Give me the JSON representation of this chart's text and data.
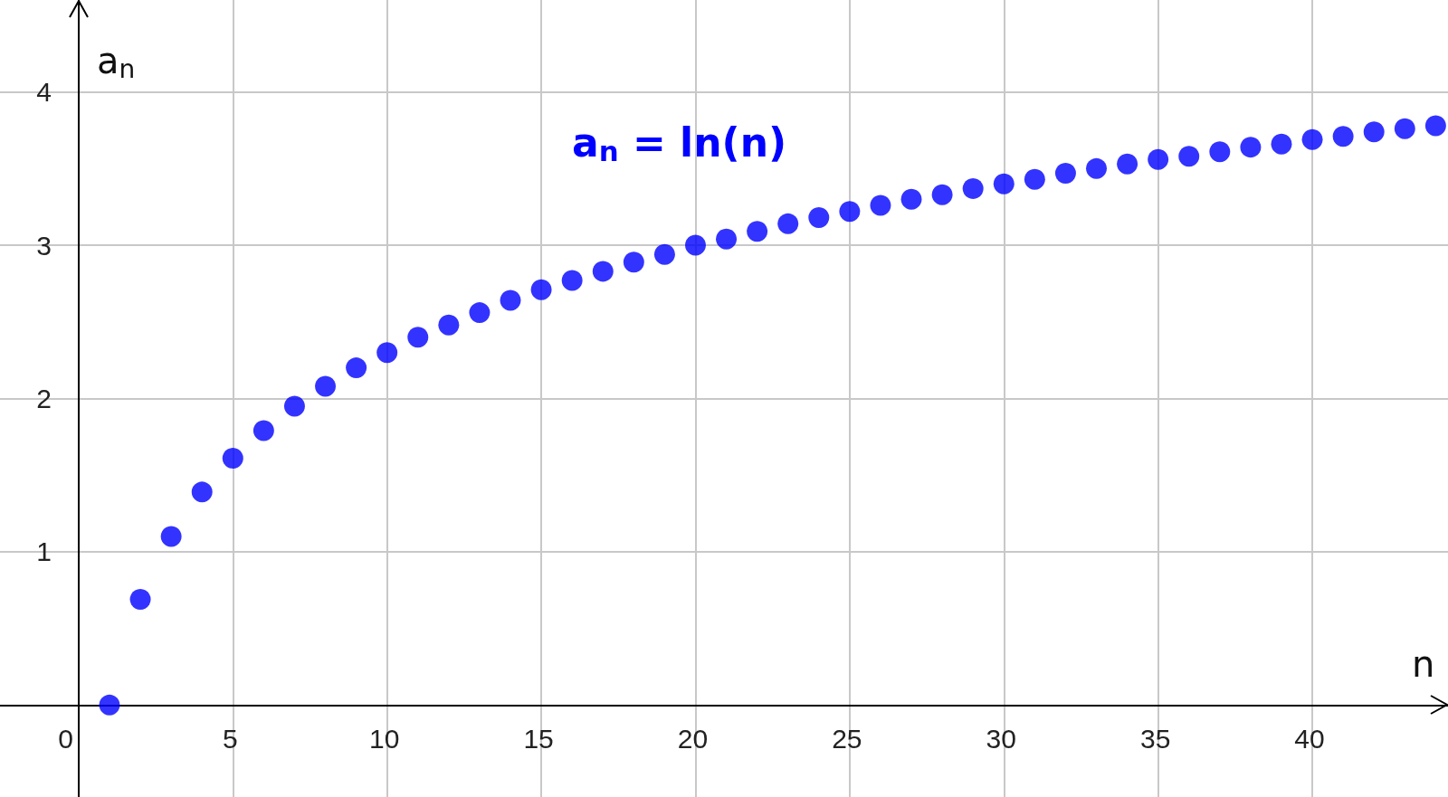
{
  "chart_data": {
    "type": "scatter",
    "xlabel": "n",
    "ylabel": "a$_{n}$",
    "x": [
      1,
      2,
      3,
      4,
      5,
      6,
      7,
      8,
      9,
      10,
      11,
      12,
      13,
      14,
      15,
      16,
      17,
      18,
      19,
      20,
      21,
      22,
      23,
      24,
      25,
      26,
      27,
      28,
      29,
      30,
      31,
      32,
      33,
      34,
      35,
      36,
      37,
      38,
      39,
      40,
      41,
      42,
      43,
      44
    ],
    "series": [
      {
        "name": "a$_{n}$ = ln(n)",
        "color": "#0000ff",
        "values": [
          0,
          0.69,
          1.1,
          1.39,
          1.61,
          1.79,
          1.95,
          2.08,
          2.2,
          2.3,
          2.4,
          2.48,
          2.56,
          2.64,
          2.71,
          2.77,
          2.83,
          2.89,
          2.94,
          3.0,
          3.04,
          3.09,
          3.14,
          3.18,
          3.22,
          3.26,
          3.3,
          3.33,
          3.37,
          3.4,
          3.43,
          3.47,
          3.5,
          3.53,
          3.56,
          3.58,
          3.61,
          3.64,
          3.66,
          3.69,
          3.71,
          3.74,
          3.76,
          3.78
        ]
      }
    ],
    "xlim": [
      -2.55,
      44.4
    ],
    "ylim": [
      -0.6,
      4.6
    ],
    "xticks": [
      0,
      5,
      10,
      15,
      20,
      25,
      30,
      35,
      40
    ],
    "yticks": [
      1,
      2,
      3,
      4
    ],
    "grid": true,
    "legend": false,
    "marker": "circle"
  }
}
